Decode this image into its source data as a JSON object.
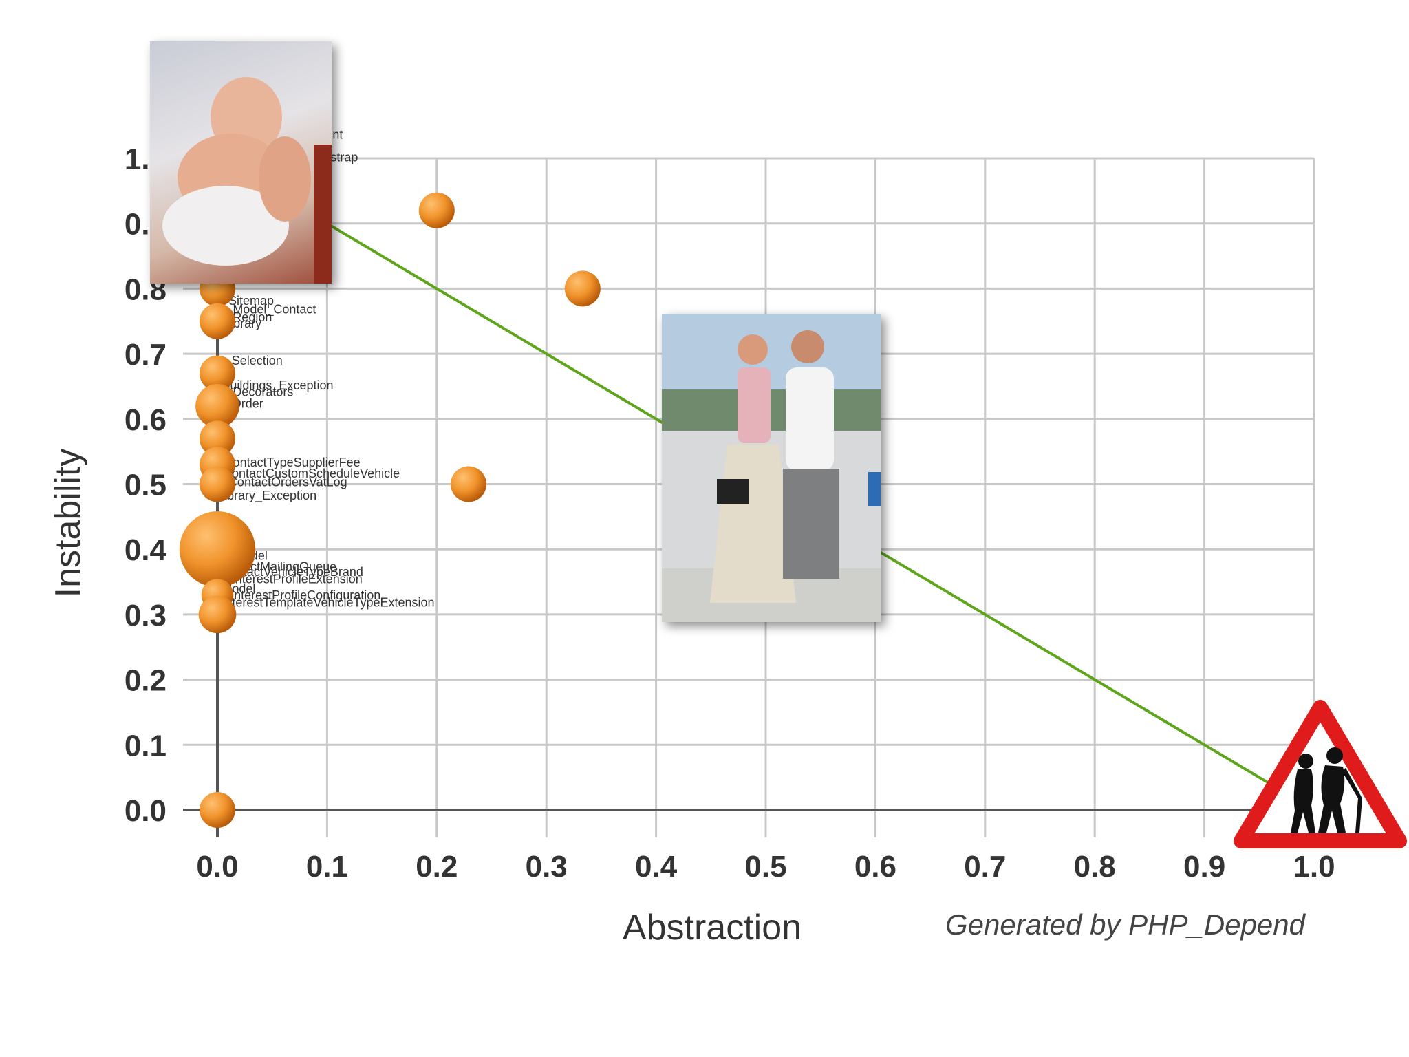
{
  "chart_data": {
    "type": "scatter",
    "title": "",
    "xlabel": "Abstraction",
    "ylabel": "Instability",
    "xlim": [
      0.0,
      1.0
    ],
    "ylim": [
      0.0,
      1.0
    ],
    "xticks": [
      "0.0",
      "0.1",
      "0.2",
      "0.3",
      "0.4",
      "0.5",
      "0.6",
      "0.7",
      "0.8",
      "0.9",
      "1.0"
    ],
    "yticks": [
      "0.0",
      "0.1",
      "0.2",
      "0.3",
      "0.4",
      "0.5",
      "0.6",
      "0.7",
      "0.8",
      "0.9",
      "1.0"
    ],
    "grid": true,
    "main_sequence": [
      [
        0.0,
        1.0
      ],
      [
        1.0,
        0.0
      ]
    ],
    "points": [
      {
        "x": 0.2,
        "y": 0.92,
        "size": 1.0
      },
      {
        "x": 0.333,
        "y": 0.8,
        "size": 1.0
      },
      {
        "x": 0.229,
        "y": 0.5,
        "size": 1.0
      },
      {
        "x": 0.0,
        "y": 0.8,
        "size": 1.0
      },
      {
        "x": 0.0,
        "y": 0.75,
        "size": 1.0
      },
      {
        "x": 0.0,
        "y": 0.67,
        "size": 1.0
      },
      {
        "x": 0.0,
        "y": 0.62,
        "size": 1.5
      },
      {
        "x": 0.0,
        "y": 0.57,
        "size": 1.0
      },
      {
        "x": 0.0,
        "y": 0.53,
        "size": 1.0
      },
      {
        "x": 0.0,
        "y": 0.5,
        "size": 1.0
      },
      {
        "x": 0.0,
        "y": 0.4,
        "size": 4.5
      },
      {
        "x": 0.0,
        "y": 0.33,
        "size": 0.8
      },
      {
        "x": 0.0,
        "y": 0.3,
        "size": 1.1
      },
      {
        "x": 0.0,
        "y": 0.0,
        "size": 1.0
      }
    ],
    "labels": [
      {
        "text": "nt",
        "x": 0.105,
        "y": 1.03
      },
      {
        "text": "tstrap",
        "x": 0.1,
        "y": 0.995
      },
      {
        "text": "Sitemap",
        "x": 0.01,
        "y": 0.775
      },
      {
        "text": "Model_Contact",
        "x": 0.014,
        "y": 0.762
      },
      {
        "text": "Region",
        "x": 0.014,
        "y": 0.75
      },
      {
        "text": "ibrary",
        "x": 0.012,
        "y": 0.74
      },
      {
        "text": "Selection",
        "x": 0.013,
        "y": 0.683
      },
      {
        "text": "Buildings_Exception",
        "x": 0.004,
        "y": 0.645
      },
      {
        "text": "Decorators",
        "x": 0.014,
        "y": 0.635
      },
      {
        "text": "Order",
        "x": 0.013,
        "y": 0.617
      },
      {
        "text": "ContactTypeSupplierFee",
        "x": 0.006,
        "y": 0.527
      },
      {
        "text": "ContactCustomScheduleVehicle",
        "x": 0.005,
        "y": 0.51
      },
      {
        "text": "ContactOrdersVatLog",
        "x": 0.01,
        "y": 0.497
      },
      {
        "text": "Library_Exception",
        "x": 0.0,
        "y": 0.476
      },
      {
        "text": "Model",
        "x": 0.015,
        "y": 0.384
      },
      {
        "text": "ContactMailingQueue",
        "x": 0.0,
        "y": 0.367
      },
      {
        "text": "ContactVehicleTypeBrand",
        "x": 0.003,
        "y": 0.359
      },
      {
        "text": "InterestProfileExtension",
        "x": 0.013,
        "y": 0.348
      },
      {
        "text": "Model",
        "x": 0.004,
        "y": 0.333
      },
      {
        "text": "InterestProfileConfiguration",
        "x": 0.012,
        "y": 0.323
      },
      {
        "text": "InterestTemplateVehicleTypeExtension",
        "x": 0.004,
        "y": 0.312
      }
    ],
    "credit": "Generated by PHP_Depend",
    "colors": {
      "point": "#f0932b",
      "point_dark": "#c8650a",
      "line": "#5fa51b",
      "grid": "#c8c8c8",
      "warning": "#e01b1b"
    }
  }
}
